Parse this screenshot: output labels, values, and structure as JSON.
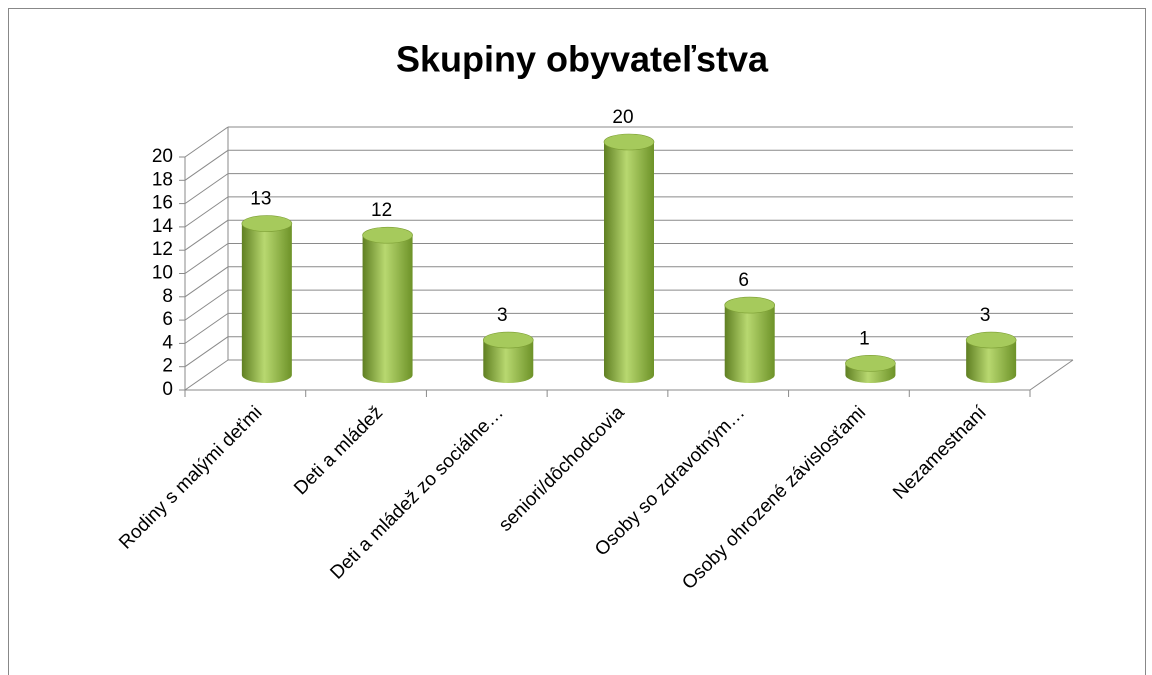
{
  "chart_data": {
    "type": "bar",
    "title": "Skupiny obyvateľstva",
    "categories": [
      "Rodiny s malými deťmi",
      "Deti a mládež",
      "Deti a mládež zo sociálne…",
      "seniori/dôchodcovia",
      "Osoby so zdravotným…",
      "Osoby ohrozené závislosťami",
      "Nezamestnaní"
    ],
    "values": [
      13,
      12,
      3,
      20,
      6,
      1,
      3
    ],
    "color": "#8db43e",
    "ylim": [
      0,
      20
    ],
    "yticks": [
      0,
      2,
      4,
      6,
      8,
      10,
      12,
      14,
      16,
      18,
      20
    ],
    "grid": true
  }
}
